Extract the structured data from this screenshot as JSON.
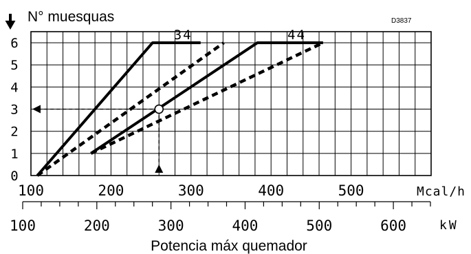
{
  "chart_data": {
    "type": "line",
    "title": "N° muesquas",
    "code": "D3837",
    "xlabel": "Potencia máx quemador",
    "unit_top": "Mcal/h",
    "unit_bottom": "kW",
    "x_mcal_ticks": [
      "100",
      "200",
      "300",
      "400",
      "500"
    ],
    "x_kw_ticks": [
      "100",
      "200",
      "300",
      "400",
      "500",
      "600"
    ],
    "y_ticks": [
      "0",
      "1",
      "2",
      "3",
      "4",
      "5",
      "6"
    ],
    "xlim_mcal": [
      100,
      600
    ],
    "xlim_kw": [
      100,
      650
    ],
    "ylim": [
      0,
      6.5
    ],
    "grid": true,
    "series": [
      {
        "name": "34",
        "style": "solid",
        "x_mcal": [
          108,
          252,
          312
        ],
        "y": [
          0,
          6,
          6
        ]
      },
      {
        "name": "34",
        "style": "dashed",
        "x_mcal": [
          108,
          341
        ],
        "y": [
          0,
          6
        ]
      },
      {
        "name": "44",
        "style": "solid",
        "x_mcal": [
          175,
          383,
          465
        ],
        "y": [
          1,
          6,
          6
        ]
      },
      {
        "name": "44",
        "style": "dashed",
        "x_mcal": [
          175,
          465
        ],
        "y": [
          1,
          6
        ]
      }
    ],
    "example": {
      "x_mcal": 260,
      "y": 3
    }
  }
}
